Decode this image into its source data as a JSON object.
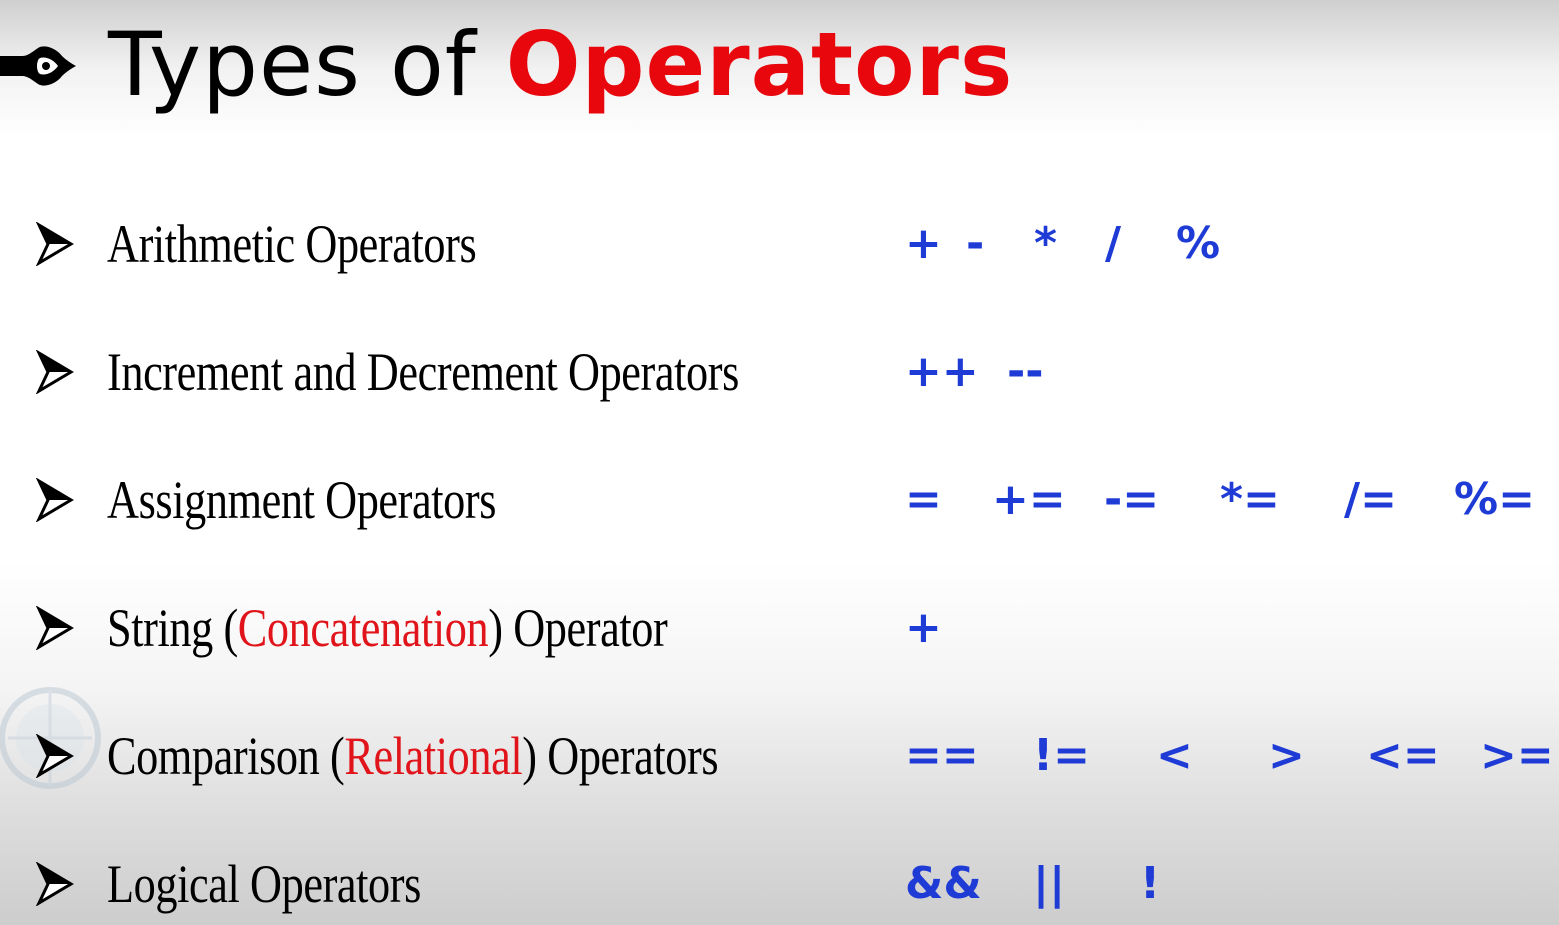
{
  "slide": {
    "title": {
      "prefix": "Types of ",
      "accent": "Operators",
      "accent_color": "#e8070c"
    },
    "title_icon": "hand-pointer-icon",
    "bullet_icon": "arrow-bullet-icon",
    "label_color": "#000000",
    "highlight_color": "#e0141a",
    "operator_color": "#1f3bd6",
    "rows": [
      {
        "label": {
          "before": "Arithmetic Operators",
          "highlight": "",
          "after": ""
        },
        "operators": [
          "+",
          "-",
          "*",
          "/",
          "%"
        ]
      },
      {
        "label": {
          "before": "Increment and Decrement Operators",
          "highlight": "",
          "after": ""
        },
        "operators": [
          "++",
          "--"
        ]
      },
      {
        "label": {
          "before": "Assignment Operators",
          "highlight": "",
          "after": ""
        },
        "operators": [
          "=",
          "+=",
          "-=",
          "*=",
          "/=",
          "%="
        ]
      },
      {
        "label": {
          "before": "String (",
          "highlight": "Concatenation",
          "after": ") Operator"
        },
        "operators": [
          "+"
        ]
      },
      {
        "label": {
          "before": "Comparison (",
          "highlight": "Relational",
          "after": ") Operators"
        },
        "operators": [
          "==",
          "!=",
          "<",
          ">",
          "<=",
          ">="
        ]
      },
      {
        "label": {
          "before": "Logical Operators",
          "highlight": "",
          "after": ""
        },
        "operators": [
          "&&",
          "||",
          "!"
        ]
      }
    ]
  }
}
